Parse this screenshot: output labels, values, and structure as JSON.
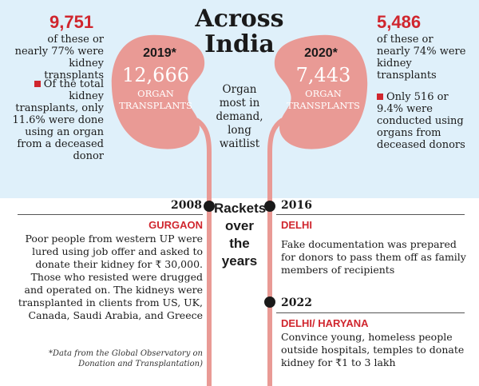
{
  "title_line1": "Across",
  "title_line2": "India",
  "left": {
    "big_number": "9,751",
    "big_caption": "of these or nearly 77% were kidney transplants",
    "bullet_text": "Of the total kidney transplants, only 11.6% were done using an organ from a deceased donor",
    "kidney_year": "2019*",
    "kidney_number": "12,666",
    "kidney_label_1": "ORGAN",
    "kidney_label_2": "TRANSPLANTS"
  },
  "right": {
    "big_number": "5,486",
    "big_caption": "of these or nearly 74% were kidney transplants",
    "bullet_text": "Only 516 or 9.4% were conducted using organs from deceased donors",
    "kidney_year": "2020*",
    "kidney_number": "7,443",
    "kidney_label_1": "ORGAN",
    "kidney_label_2": "TRANSPLANTS"
  },
  "center_text": "Organ most in demand, long waitlist",
  "rackets_line1": "Rackets",
  "rackets_line2": "over the",
  "rackets_line3": "years",
  "events": {
    "e2008": {
      "year": "2008",
      "place": "GURGAON",
      "text": "Poor people from western UP were lured using job offer and asked to donate their kidney for ₹ 30,000. Those who resisted were drugged and operated on. The kidneys were transplanted in clients from US, UK, Canada, Saudi Arabia, and Greece"
    },
    "e2016": {
      "year": "2016",
      "place": "DELHI",
      "text": "Fake documentation was prepared for donors to pass them off as family members of recipients"
    },
    "e2022": {
      "year": "2022",
      "place": "DELHI/ HARYANA",
      "text": "Convince young, homeless people outside hospitals, temples to donate kidney for ₹1 to 3 lakh"
    }
  },
  "footnote": "*Data from the Global Observatory on Donation and Transplantation)",
  "colors": {
    "accent_red": "#d0262e",
    "kidney_pink": "#e99a95",
    "band_blue": "#dff0fa"
  }
}
